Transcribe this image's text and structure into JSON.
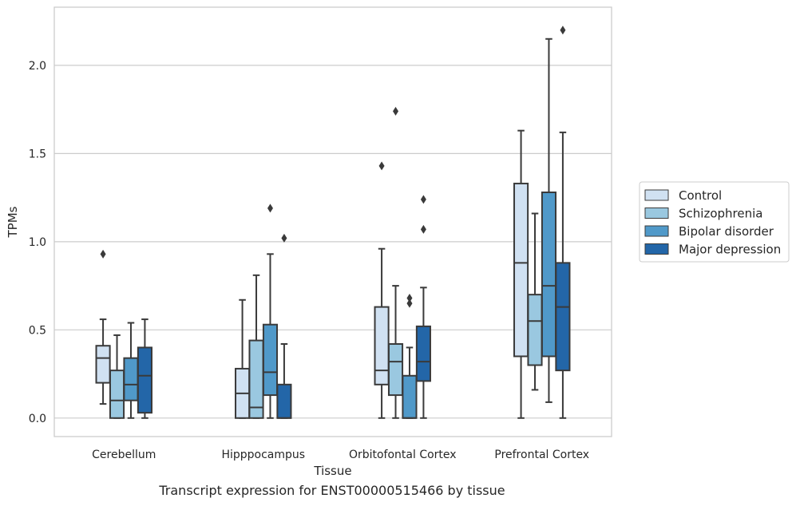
{
  "chart_data": {
    "type": "box",
    "xlabel": "Tissue",
    "ylabel": "TPMs",
    "ylim": [
      -0.105,
      2.33
    ],
    "yticks": [
      0.0,
      0.5,
      1.0,
      1.5,
      2.0
    ],
    "ytick_labels": [
      "0.0",
      "0.5",
      "1.0",
      "1.5",
      "2.0"
    ],
    "grid": "horizontal",
    "legend_placement": "right",
    "categories": [
      "Cerebellum",
      "Hipppocampus",
      "Orbitofontal Cortex",
      "Prefrontal Cortex"
    ],
    "series": [
      {
        "name": "Control",
        "color": "#d0e1f2",
        "boxes": [
          {
            "whislo": 0.08,
            "q1": 0.2,
            "med": 0.34,
            "q3": 0.41,
            "whishi": 0.56,
            "fliers": [
              0.93
            ]
          },
          {
            "whislo": 0.0,
            "q1": 0.0,
            "med": 0.14,
            "q3": 0.28,
            "whishi": 0.67,
            "fliers": []
          },
          {
            "whislo": 0.0,
            "q1": 0.19,
            "med": 0.27,
            "q3": 0.63,
            "whishi": 0.96,
            "fliers": [
              1.43
            ]
          },
          {
            "whislo": 0.0,
            "q1": 0.35,
            "med": 0.88,
            "q3": 1.33,
            "whishi": 1.63,
            "fliers": []
          }
        ]
      },
      {
        "name": "Schizophrenia",
        "color": "#9ac8e0",
        "boxes": [
          {
            "whislo": 0.0,
            "q1": 0.0,
            "med": 0.1,
            "q3": 0.27,
            "whishi": 0.47,
            "fliers": []
          },
          {
            "whislo": 0.0,
            "q1": 0.0,
            "med": 0.06,
            "q3": 0.44,
            "whishi": 0.81,
            "fliers": []
          },
          {
            "whislo": 0.0,
            "q1": 0.13,
            "med": 0.32,
            "q3": 0.42,
            "whishi": 0.75,
            "fliers": [
              1.74
            ]
          },
          {
            "whislo": 0.16,
            "q1": 0.3,
            "med": 0.55,
            "q3": 0.7,
            "whishi": 1.16,
            "fliers": []
          }
        ]
      },
      {
        "name": "Bipolar disorder",
        "color": "#5099c9",
        "boxes": [
          {
            "whislo": 0.0,
            "q1": 0.1,
            "med": 0.19,
            "q3": 0.34,
            "whishi": 0.54,
            "fliers": []
          },
          {
            "whislo": 0.0,
            "q1": 0.13,
            "med": 0.26,
            "q3": 0.53,
            "whishi": 0.93,
            "fliers": [
              1.19
            ]
          },
          {
            "whislo": 0.0,
            "q1": 0.0,
            "med": 0.0,
            "q3": 0.24,
            "whishi": 0.4,
            "fliers": [
              0.65,
              0.68
            ]
          },
          {
            "whislo": 0.09,
            "q1": 0.35,
            "med": 0.75,
            "q3": 1.28,
            "whishi": 2.15,
            "fliers": []
          }
        ]
      },
      {
        "name": "Major depression",
        "color": "#2366a8",
        "boxes": [
          {
            "whislo": 0.0,
            "q1": 0.03,
            "med": 0.24,
            "q3": 0.4,
            "whishi": 0.56,
            "fliers": []
          },
          {
            "whislo": 0.0,
            "q1": 0.0,
            "med": 0.0,
            "q3": 0.19,
            "whishi": 0.42,
            "fliers": [
              1.02
            ]
          },
          {
            "whislo": 0.0,
            "q1": 0.21,
            "med": 0.32,
            "q3": 0.52,
            "whishi": 0.74,
            "fliers": [
              1.07,
              1.24
            ]
          },
          {
            "whislo": 0.0,
            "q1": 0.27,
            "med": 0.63,
            "q3": 0.88,
            "whishi": 1.62,
            "fliers": [
              2.2
            ]
          }
        ]
      }
    ],
    "caption": "Transcript expression for ENST00000515466 by tissue"
  }
}
